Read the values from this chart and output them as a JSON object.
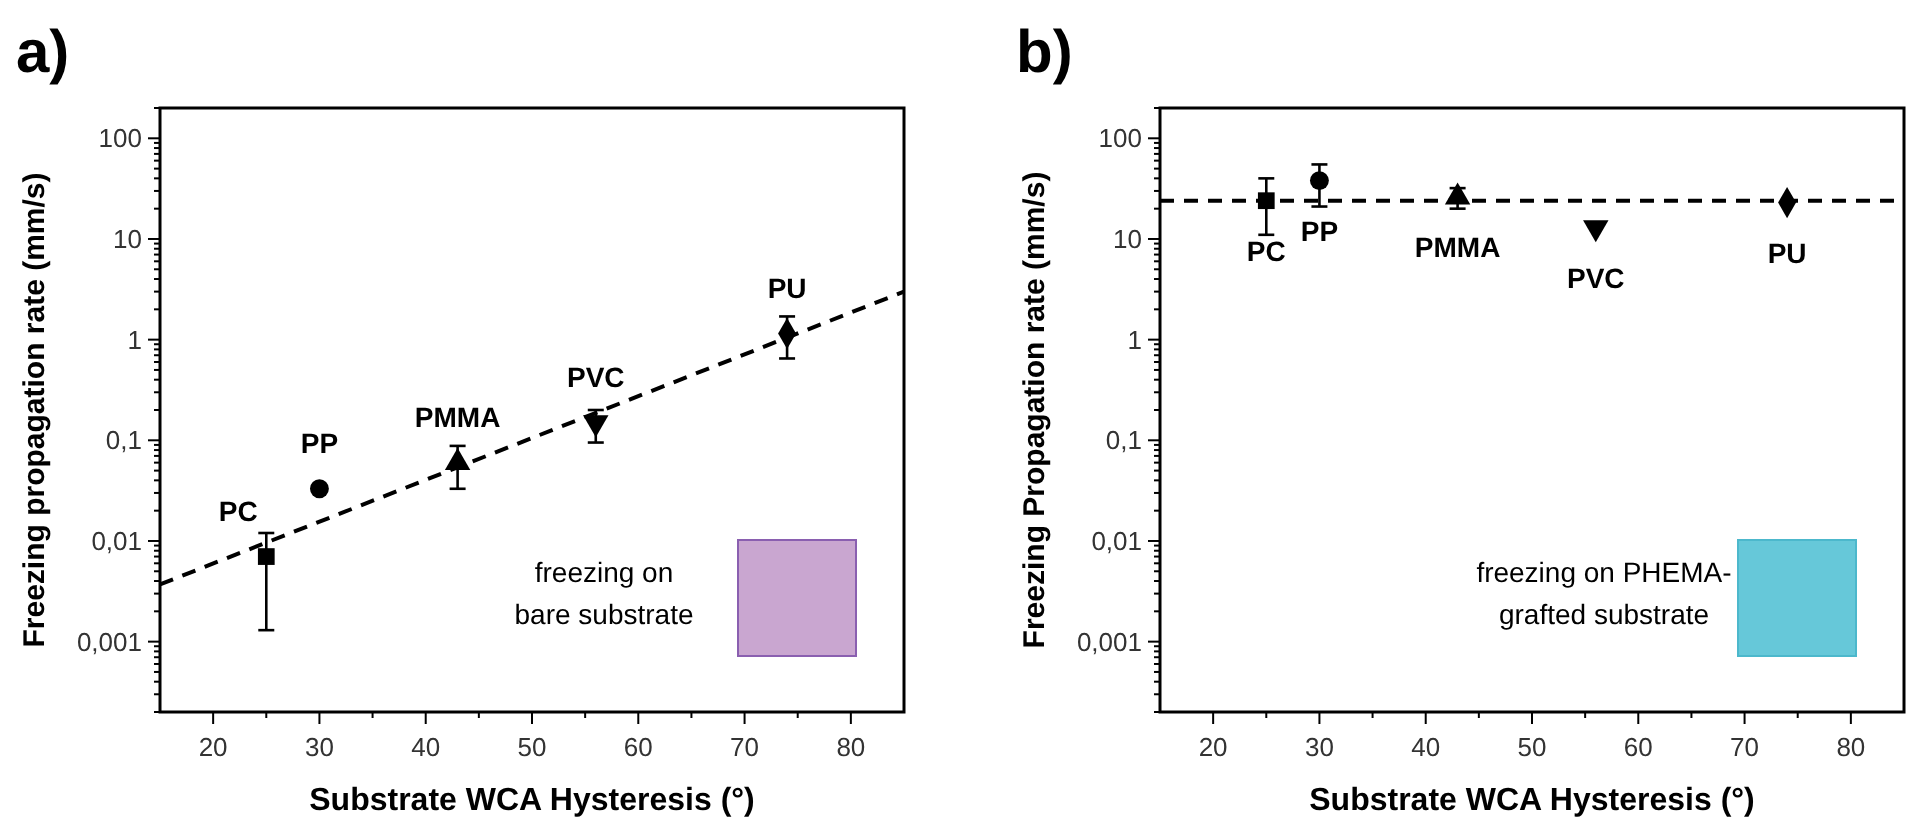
{
  "chart_data": [
    {
      "type": "scatter",
      "title": "a)",
      "xlabel": "Substrate WCA Hysteresis (°)",
      "ylabel": "Freezing propagation rate (mm/s)",
      "log": "y",
      "xlim": [
        15,
        85
      ],
      "xticks": [
        20,
        30,
        40,
        50,
        60,
        70,
        80
      ],
      "ylim": [
        0.0002,
        200
      ],
      "yticks": [
        {
          "value": 0.001,
          "label": "0,001"
        },
        {
          "value": 0.01,
          "label": "0,01"
        },
        {
          "value": 0.1,
          "label": "0,1"
        },
        {
          "value": 1,
          "label": "1"
        },
        {
          "value": 10,
          "label": "10"
        },
        {
          "value": 100,
          "label": "100"
        }
      ],
      "grid": false,
      "annotations": [
        "freezing on\nbare substrate"
      ],
      "series": [
        {
          "name": "PC",
          "color": "#000000",
          "marker": "square",
          "x": [
            25
          ],
          "values": [
            0.007
          ],
          "errors": [
            [
              0.0013,
              0.012
            ]
          ]
        },
        {
          "name": "PP",
          "color": "#000000",
          "marker": "circle",
          "x": [
            30
          ],
          "values": [
            0.033
          ],
          "errors": [
            null
          ]
        },
        {
          "name": "PMMA",
          "color": "#000000",
          "marker": "triangle",
          "x": [
            43
          ],
          "values": [
            0.06
          ],
          "errors": [
            [
              0.033,
              0.088
            ]
          ]
        },
        {
          "name": "PVC",
          "color": "#000000",
          "marker": "triangle-down",
          "x": [
            56
          ],
          "values": [
            0.15
          ],
          "errors": [
            [
              0.095,
              0.2
            ]
          ]
        },
        {
          "name": "PU",
          "color": "#000000",
          "marker": "diamond",
          "x": [
            74
          ],
          "values": [
            1.15
          ],
          "errors": [
            [
              0.65,
              1.7
            ]
          ]
        },
        {
          "type": "line",
          "color": "#000000",
          "line_style": "dashed",
          "x": [
            15,
            85
          ],
          "values": [
            0.0037,
            3
          ]
        }
      ]
    },
    {
      "type": "scatter",
      "title": "b)",
      "xlabel": "Substrate WCA Hysteresis (°)",
      "ylabel": "Freezing Propagation rate (mm/s)",
      "log": "y",
      "xlim": [
        15,
        85
      ],
      "xticks": [
        20,
        30,
        40,
        50,
        60,
        70,
        80
      ],
      "ylim": [
        0.0002,
        200
      ],
      "yticks": [
        {
          "value": 0.001,
          "label": "0,001"
        },
        {
          "value": 0.01,
          "label": "0,01"
        },
        {
          "value": 0.1,
          "label": "0,1"
        },
        {
          "value": 1,
          "label": "1"
        },
        {
          "value": 10,
          "label": "10"
        },
        {
          "value": 100,
          "label": "100"
        }
      ],
      "grid": false,
      "annotations": [
        "freezing on PHEMA-\ngrafted substrate"
      ],
      "ref_lines": [
        {
          "axis": "y",
          "value": 24,
          "color": "#000000",
          "line_style": "dashed"
        }
      ],
      "series": [
        {
          "name": "PC",
          "color": "#000000",
          "marker": "square",
          "x": [
            25
          ],
          "values": [
            24
          ],
          "errors": [
            [
              11,
              40
            ]
          ]
        },
        {
          "name": "PP",
          "color": "#000000",
          "marker": "circle",
          "x": [
            30
          ],
          "values": [
            38
          ],
          "errors": [
            [
              21,
              55
            ]
          ]
        },
        {
          "name": "PMMA",
          "color": "#000000",
          "marker": "triangle",
          "x": [
            43
          ],
          "values": [
            26
          ],
          "errors": [
            [
              20,
              32
            ]
          ]
        },
        {
          "name": "PVC",
          "color": "#000000",
          "marker": "triangle-down",
          "x": [
            56
          ],
          "values": [
            13
          ],
          "errors": [
            null
          ]
        },
        {
          "name": "PU",
          "color": "#000000",
          "marker": "diamond",
          "x": [
            74
          ],
          "values": [
            23
          ],
          "errors": [
            null
          ]
        }
      ]
    }
  ]
}
